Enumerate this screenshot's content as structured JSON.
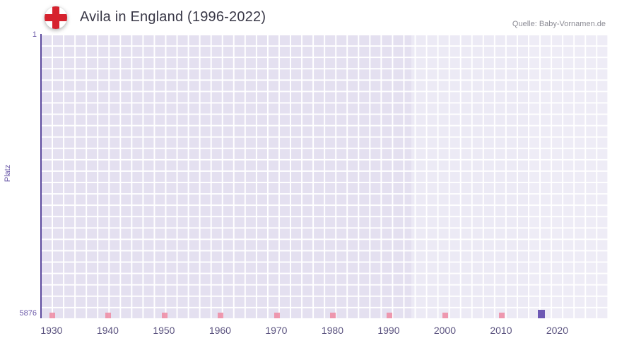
{
  "header": {
    "title": "Avila in England (1996-2022)",
    "source": "Quelle: Baby-Vornamen.de",
    "flag_icon": "england-flag-icon"
  },
  "chart_data": {
    "type": "bar",
    "title": "Avila in England (1996-2022)",
    "xlabel": "",
    "ylabel": "Platz",
    "y_axis": {
      "top_label": "1",
      "bottom_label": "5876",
      "min": 1,
      "max": 5876,
      "inverted": true
    },
    "x_range": [
      1928,
      2029
    ],
    "x_ticks": [
      1930,
      1940,
      1950,
      1960,
      1970,
      1980,
      1990,
      2000,
      2010,
      2020
    ],
    "grid": true,
    "legend": "none",
    "highlight_region_years": [
      1994,
      2029
    ],
    "highlight_region2_years": [
      2015,
      2029
    ],
    "decade_marks": [
      1930,
      1940,
      1950,
      1960,
      1970,
      1980,
      1990,
      2000,
      2010
    ],
    "series": [
      {
        "name": "Avila",
        "points": [
          {
            "year": 2017,
            "rank": 5700
          }
        ]
      }
    ],
    "colors": {
      "plot_bg": "#e4e0f0",
      "grid_line": "#ffffff",
      "axis_line": "#5c4a9e",
      "tick_label": "#6a58a8",
      "x_tick_label": "#5c5480",
      "decade_mark": "#ee89a2",
      "data_bar": "#6d58b4",
      "title": "#393847",
      "source": "#8b8b94",
      "flag_cross": "#d6222e"
    }
  }
}
